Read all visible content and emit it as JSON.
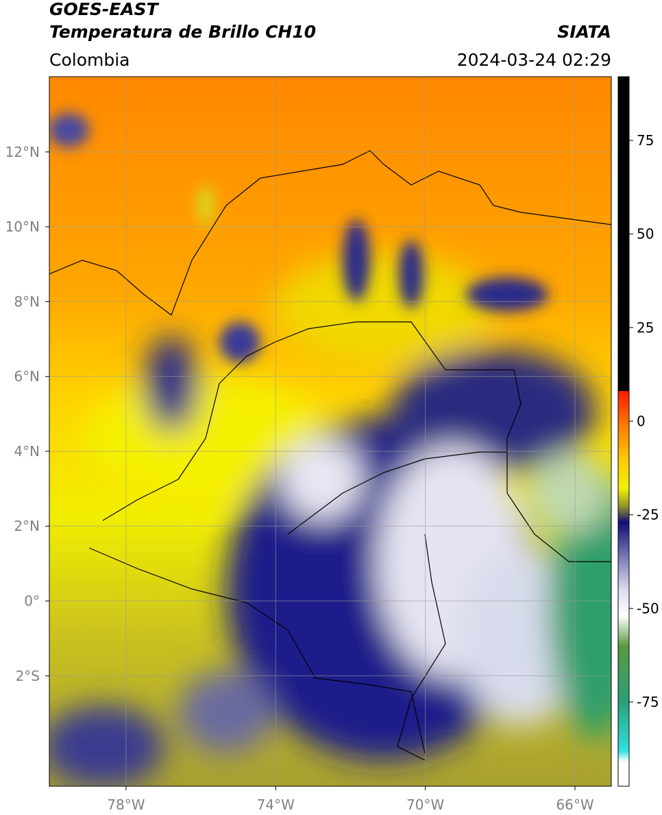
{
  "header": {
    "title": "GOES-EAST",
    "subtitle": "Temperatura de Brillo CH10",
    "source": "SIATA",
    "region": "Colombia",
    "datetime": "2024-03-24 02:29"
  },
  "map": {
    "xlim": [
      -80.05,
      -65.03
    ],
    "ylim": [
      -4.95,
      14.01
    ],
    "xticks": [
      {
        "value": -78,
        "label": "78°W"
      },
      {
        "value": -74,
        "label": "74°W"
      },
      {
        "value": -70,
        "label": "70°W"
      },
      {
        "value": -66,
        "label": "66°W"
      }
    ],
    "yticks": [
      {
        "value": -2,
        "label": "2°S"
      },
      {
        "value": 0,
        "label": "0°"
      },
      {
        "value": 2,
        "label": "2°N"
      },
      {
        "value": 4,
        "label": "4°N"
      },
      {
        "value": 6,
        "label": "6°N"
      },
      {
        "value": 8,
        "label": "8°N"
      },
      {
        "value": 10,
        "label": "10°N"
      },
      {
        "value": 12,
        "label": "12°N"
      }
    ],
    "grid": true
  },
  "colorbar": {
    "ylim": [
      -97.5,
      92
    ],
    "ticks": [
      -75,
      -50,
      -25,
      0,
      25,
      50,
      75
    ],
    "colors": [
      {
        "value": 92,
        "color": "#000000"
      },
      {
        "value": 8,
        "color": "#000000"
      },
      {
        "value": 8,
        "color": "#ff1a00"
      },
      {
        "value": 0,
        "color": "#ff7000"
      },
      {
        "value": -10,
        "color": "#ffc800"
      },
      {
        "value": -18,
        "color": "#f0f000"
      },
      {
        "value": -23,
        "color": "#8c8c30"
      },
      {
        "value": -27,
        "color": "#101075"
      },
      {
        "value": -45,
        "color": "#dcdcf0"
      },
      {
        "value": -52,
        "color": "#ffffff"
      },
      {
        "value": -60,
        "color": "#5a9a40"
      },
      {
        "value": -75,
        "color": "#2aa07a"
      },
      {
        "value": -88,
        "color": "#30e0e0"
      },
      {
        "value": -91,
        "color": "#ffffff"
      },
      {
        "value": -97.5,
        "color": "#ffffff"
      }
    ]
  }
}
